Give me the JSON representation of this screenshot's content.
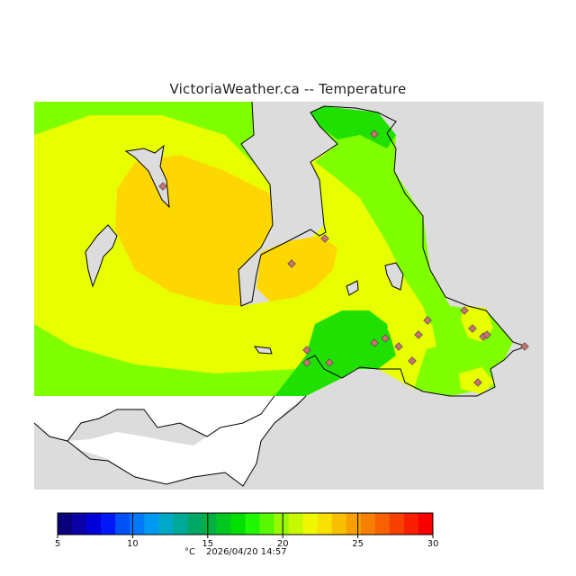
{
  "title": "VictoriaWeather.ca -- Temperature",
  "legend": {
    "unit": "°C",
    "ticks": [
      "5",
      "10",
      "15",
      "20",
      "25",
      "30"
    ],
    "min": 5,
    "max": 30,
    "colors": [
      "#0a007a",
      "#0a00a8",
      "#0000d8",
      "#0018f8",
      "#0050f8",
      "#0078f8",
      "#0098f0",
      "#00a8c8",
      "#00a898",
      "#00a868",
      "#00b040",
      "#00c820",
      "#00e000",
      "#20f800",
      "#58f800",
      "#98f800",
      "#c8f800",
      "#f0f800",
      "#f8e000",
      "#f8c000",
      "#f8a000",
      "#f88000",
      "#f86000",
      "#f84000",
      "#f82000",
      "#f80000"
    ]
  },
  "timestamp": "2026/04/20 14:57",
  "zone_colors": {
    "land": "#dcdcdc",
    "warm_core": "#ffd700",
    "mild": "#e8ff00",
    "cool": "#80ff00",
    "cooler": "#20e000",
    "unshaded": "#ffffff"
  }
}
